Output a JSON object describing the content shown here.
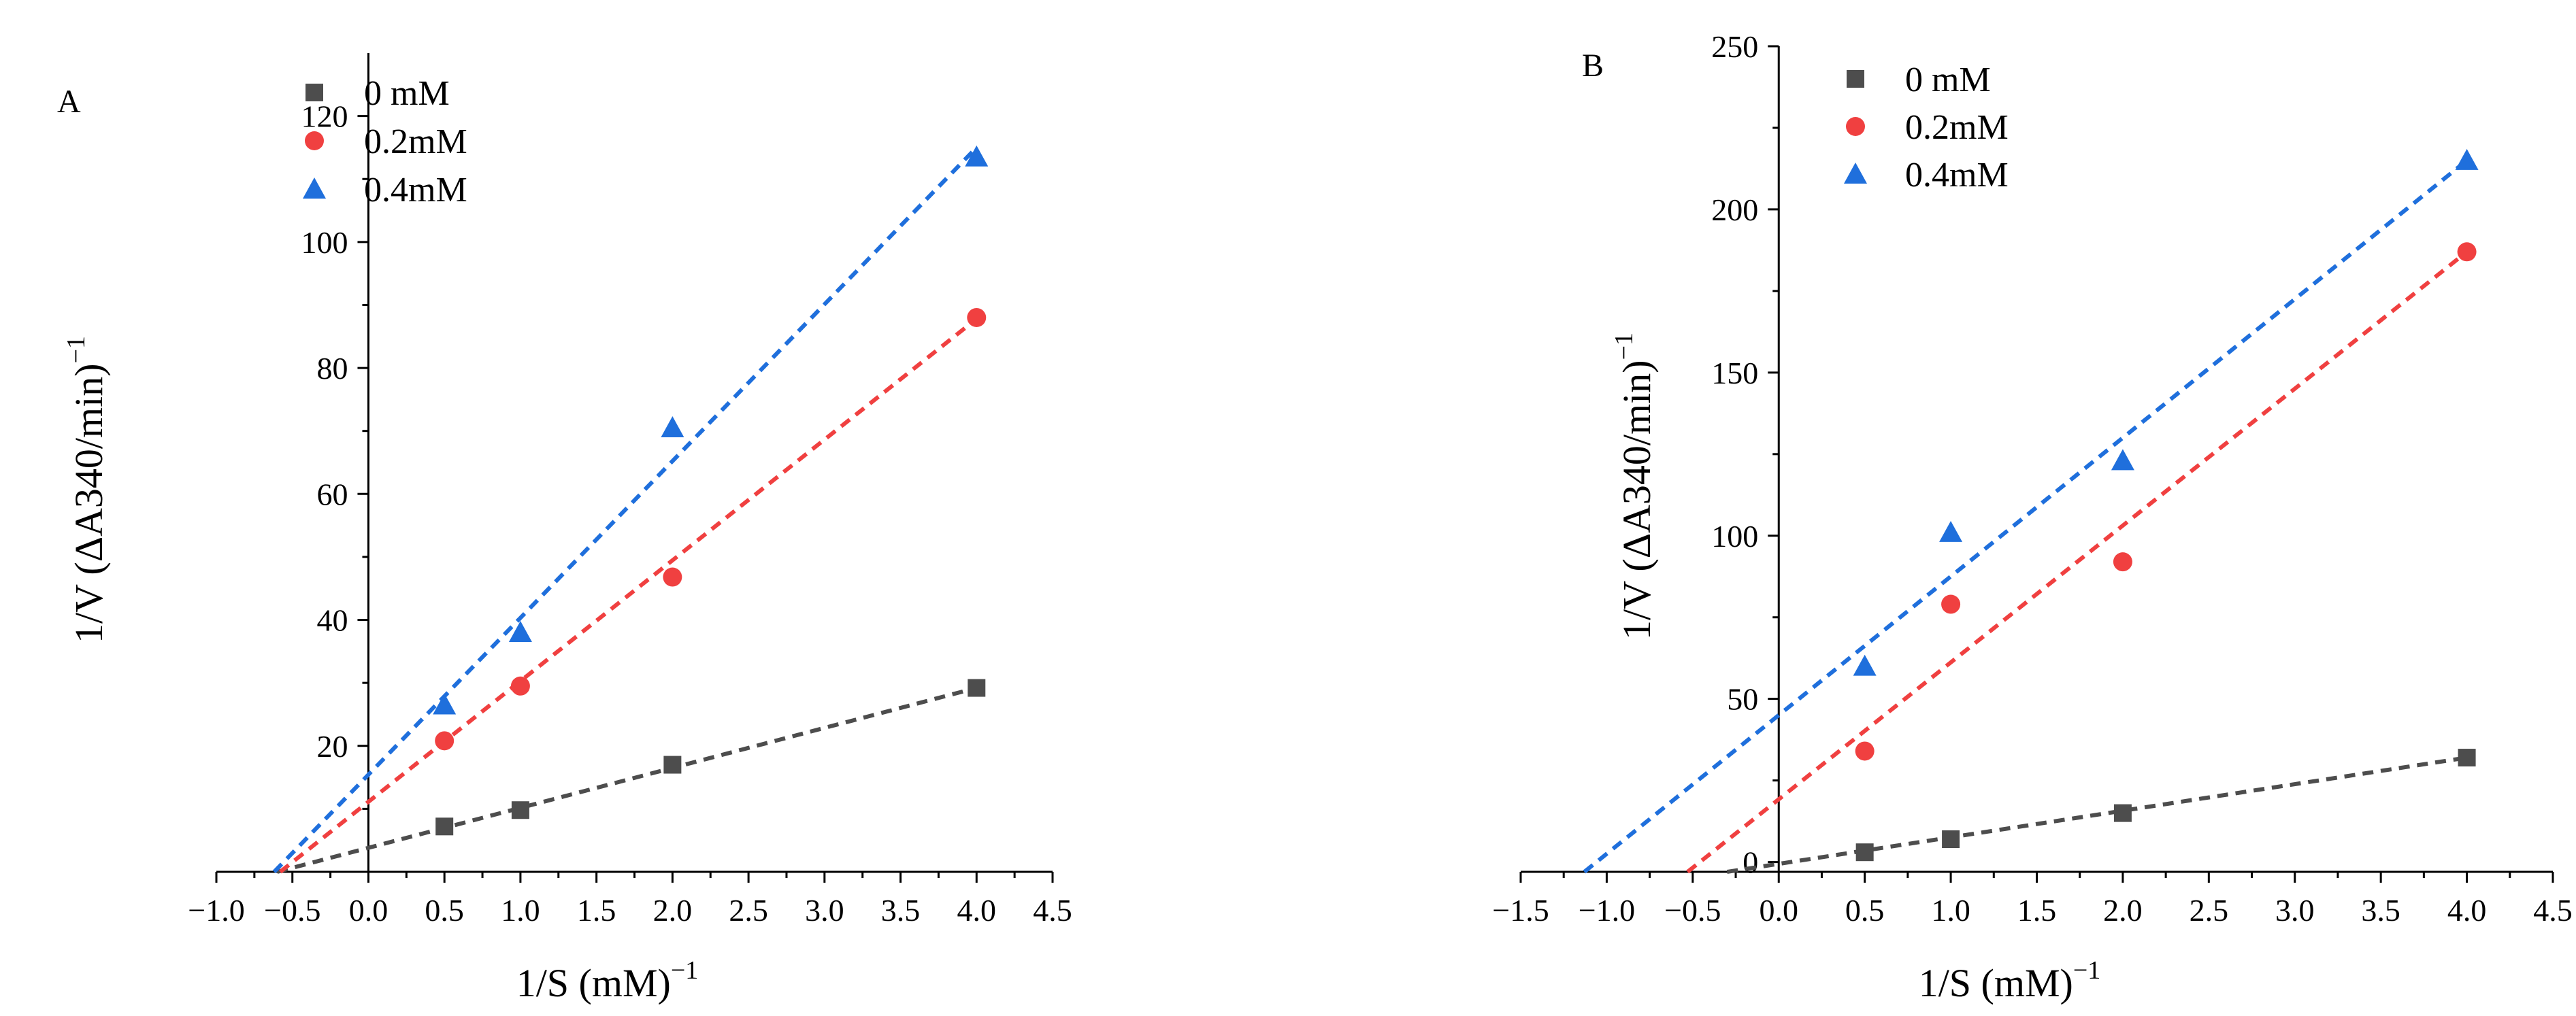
{
  "chart_data": [
    {
      "panel": "A",
      "type": "scatter",
      "title": "",
      "xlabel": "1/S (mM)",
      "xlabel_sup": "−1",
      "ylabel": "1/V (ΔA340/min)",
      "ylabel_sup": "−1",
      "xlim": [
        -1.0,
        4.5
      ],
      "ylim": [
        0,
        130
      ],
      "xticks": [
        -1.0,
        -0.5,
        0.0,
        0.5,
        1.0,
        1.5,
        2.0,
        2.5,
        3.0,
        3.5,
        4.0,
        4.5
      ],
      "xtick_labels": [
        "−1.0",
        "−0.5",
        "0.0",
        "0.5",
        "1.0",
        "1.5",
        "2.0",
        "2.5",
        "3.0",
        "3.5",
        "4.0",
        "4.5"
      ],
      "yticks": [
        20,
        40,
        60,
        80,
        100,
        120
      ],
      "ytick_labels": [
        "20",
        "40",
        "60",
        "80",
        "100",
        "120"
      ],
      "legend_position": "top-left",
      "grid": false,
      "series": [
        {
          "name": "0  mM",
          "marker": "square",
          "color": "#4d4d4d",
          "x": [
            0.5,
            1.0,
            2.0,
            4.0
          ],
          "y": [
            7.2,
            9.8,
            17.0,
            29.2
          ],
          "fit_x": [
            -0.6,
            4.0
          ],
          "fit_y": [
            0.0,
            29.2
          ]
        },
        {
          "name": "0.2mM",
          "marker": "circle",
          "color": "#f04040",
          "x": [
            0.5,
            1.0,
            2.0,
            4.0
          ],
          "y": [
            20.8,
            29.5,
            46.8,
            88.0
          ],
          "fit_x": [
            -0.58,
            4.0
          ],
          "fit_y": [
            0.0,
            87.8
          ]
        },
        {
          "name": "0.4mM",
          "marker": "triangle",
          "color": "#1f6fdc",
          "x": [
            0.5,
            1.0,
            2.0,
            4.0
          ],
          "y": [
            26.5,
            38.0,
            70.5,
            113.5
          ],
          "fit_x": [
            -0.62,
            4.0
          ],
          "fit_y": [
            0.0,
            115.0
          ]
        }
      ]
    },
    {
      "panel": "B",
      "type": "scatter",
      "title": "",
      "xlabel": "1/S (mM)",
      "xlabel_sup": "−1",
      "ylabel": "1/V (ΔA340/min)",
      "ylabel_sup": "−1",
      "xlim": [
        -1.5,
        4.5
      ],
      "ylim": [
        -3,
        250
      ],
      "xticks": [
        -1.5,
        -1.0,
        -0.5,
        0.0,
        0.5,
        1.0,
        1.5,
        2.0,
        2.5,
        3.0,
        3.5,
        4.0,
        4.5
      ],
      "xtick_labels": [
        "−1.5",
        "−1.0",
        "−0.5",
        "0.0",
        "0.5",
        "1.0",
        "1.5",
        "2.0",
        "2.5",
        "3.0",
        "3.5",
        "4.0",
        "4.5"
      ],
      "yticks": [
        0,
        50,
        100,
        150,
        200,
        250
      ],
      "ytick_labels": [
        "0",
        "50",
        "100",
        "150",
        "200",
        "250"
      ],
      "legend_position": "top-left",
      "grid": false,
      "series": [
        {
          "name": "0 mM",
          "marker": "square",
          "color": "#4d4d4d",
          "x": [
            0.5,
            1.0,
            2.0,
            4.0
          ],
          "y": [
            3.0,
            7.0,
            15.0,
            32.0
          ],
          "fit_x": [
            -0.3,
            4.0
          ],
          "fit_y": [
            -3.0,
            32.0
          ]
        },
        {
          "name": "0.2mM",
          "marker": "circle",
          "color": "#f04040",
          "x": [
            0.5,
            1.0,
            2.0,
            4.0
          ],
          "y": [
            34.0,
            79.0,
            92.0,
            187.0
          ],
          "fit_x": [
            -0.53,
            4.0
          ],
          "fit_y": [
            -3.0,
            187.0
          ]
        },
        {
          "name": "0.4mM",
          "marker": "triangle",
          "color": "#1f6fdc",
          "x": [
            0.5,
            1.0,
            2.0,
            4.0
          ],
          "y": [
            60.0,
            101.0,
            123.0,
            215.0
          ],
          "fit_x": [
            -1.13,
            4.0
          ],
          "fit_y": [
            -3.0,
            215.0
          ]
        }
      ]
    }
  ]
}
